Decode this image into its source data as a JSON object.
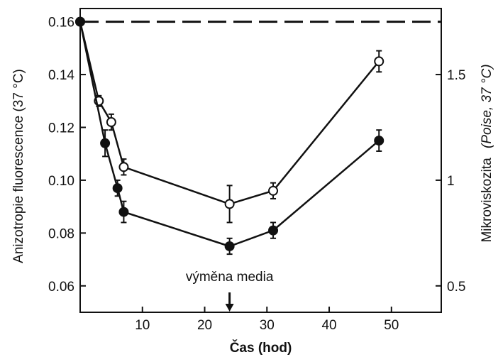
{
  "chart_data": {
    "type": "line",
    "title": "",
    "xlabel": "Čas (hod)",
    "ylabel_left": "Anizotropie fluorescence (37 °C)",
    "ylabel_right_main": "Mikroviskozita",
    "ylabel_right_paren": "(Poise, 37 °C)",
    "xlim": [
      0,
      58
    ],
    "ylim": [
      0.05,
      0.165
    ],
    "x_ticks": [
      10,
      20,
      30,
      40,
      50
    ],
    "x_tick_labels": [
      "10",
      "20",
      "30",
      "40",
      "50"
    ],
    "y_ticks": [
      0.06,
      0.08,
      0.1,
      0.12,
      0.14,
      0.16
    ],
    "y_tick_labels": [
      "0.06",
      "0.08",
      "0.10",
      "0.12",
      "0.14",
      "0.16"
    ],
    "right_ticks": [
      0.06,
      0.1,
      0.14
    ],
    "right_tick_labels": [
      "0.5",
      "1",
      "1.5"
    ],
    "reference_line": 0.16,
    "annotation": {
      "text": "výměna media",
      "x": 24
    },
    "series": [
      {
        "marker": "open-circle",
        "x": [
          0,
          3,
          5,
          7,
          24,
          31,
          48
        ],
        "y": [
          0.16,
          0.13,
          0.122,
          0.105,
          0.091,
          0.096,
          0.145
        ],
        "err": [
          0,
          0.002,
          0.003,
          0.003,
          0.007,
          0.003,
          0.004
        ]
      },
      {
        "marker": "filled-circle",
        "x": [
          0,
          4,
          6,
          7,
          24,
          31,
          48
        ],
        "y": [
          0.16,
          0.114,
          0.097,
          0.088,
          0.075,
          0.081,
          0.115
        ],
        "err": [
          0,
          0.005,
          0.003,
          0.004,
          0.003,
          0.003,
          0.004
        ]
      }
    ]
  }
}
